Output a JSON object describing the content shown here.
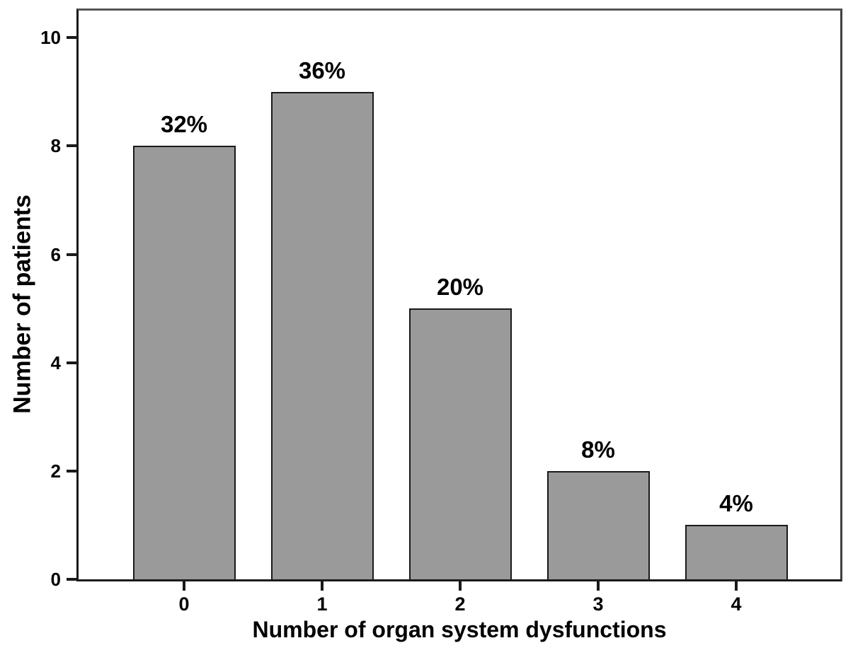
{
  "chart_data": {
    "type": "bar",
    "title": "",
    "categories": [
      "0",
      "1",
      "2",
      "3",
      "4"
    ],
    "values": [
      8,
      9,
      5,
      2,
      1
    ],
    "bar_labels": [
      "32%",
      "36%",
      "20%",
      "8%",
      "4%"
    ],
    "xlabel": "Number of organ system dysfunctions",
    "ylabel": "Number of patients",
    "y_ticks": [
      0,
      2,
      4,
      6,
      8,
      10
    ],
    "ylim": [
      0,
      10.5
    ],
    "grid": false,
    "legend_position": "none",
    "colors": {
      "bar_fill": "#9a9a9a",
      "bar_border": "#1a1a1a",
      "frame": "#3f3f3f",
      "text": "#000000",
      "background": "#ffffff"
    }
  }
}
